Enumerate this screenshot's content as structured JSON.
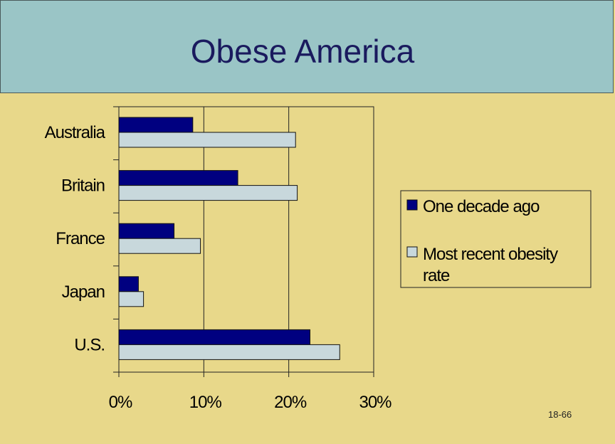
{
  "slide": {
    "title": "Obese America",
    "page_number": "18-66"
  },
  "colors": {
    "background": "#E8D88A",
    "title_band": "#9AC5C6",
    "title_text": "#1A1A5E",
    "series_past": "#000080",
    "series_recent": "#C8D8DC"
  },
  "chart_data": {
    "type": "bar",
    "orientation": "horizontal",
    "categories": [
      "Australia",
      "Britain",
      "France",
      "Japan",
      "U.S."
    ],
    "series": [
      {
        "name": "One decade ago",
        "values": [
          8.7,
          14.0,
          6.5,
          2.3,
          22.5
        ]
      },
      {
        "name": "Most recent obesity rate",
        "values": [
          20.8,
          21.0,
          9.6,
          2.9,
          26.0
        ]
      }
    ],
    "xlim": [
      0,
      30
    ],
    "xticks": [
      0,
      10,
      20,
      30
    ],
    "xtick_labels": [
      "0%",
      "10%",
      "20%",
      "30%"
    ],
    "title": "",
    "xlabel": "",
    "ylabel": "",
    "grid": "vertical",
    "legend": "right"
  }
}
